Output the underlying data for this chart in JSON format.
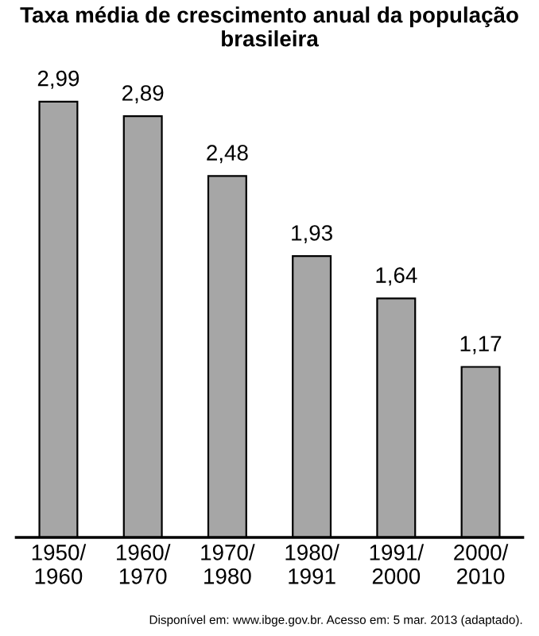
{
  "chart_data": {
    "type": "bar",
    "title": "Taxa média de crescimento anual da população brasileira",
    "categories": [
      "1950/\n1960",
      "1960/\n1970",
      "1970/\n1980",
      "1980/\n1991",
      "1991/\n2000",
      "2000/\n2010"
    ],
    "values": [
      2.99,
      2.89,
      2.48,
      1.93,
      1.64,
      1.17
    ],
    "value_labels": [
      "2,99",
      "2,89",
      "2,48",
      "1,93",
      "1,64",
      "1,17"
    ],
    "color": "#a6a6a6",
    "grid": false,
    "annotations": [
      "Disponível em: www.ibge.gov.br. Acesso em: 5 mar. 2013 (adaptado)."
    ]
  }
}
